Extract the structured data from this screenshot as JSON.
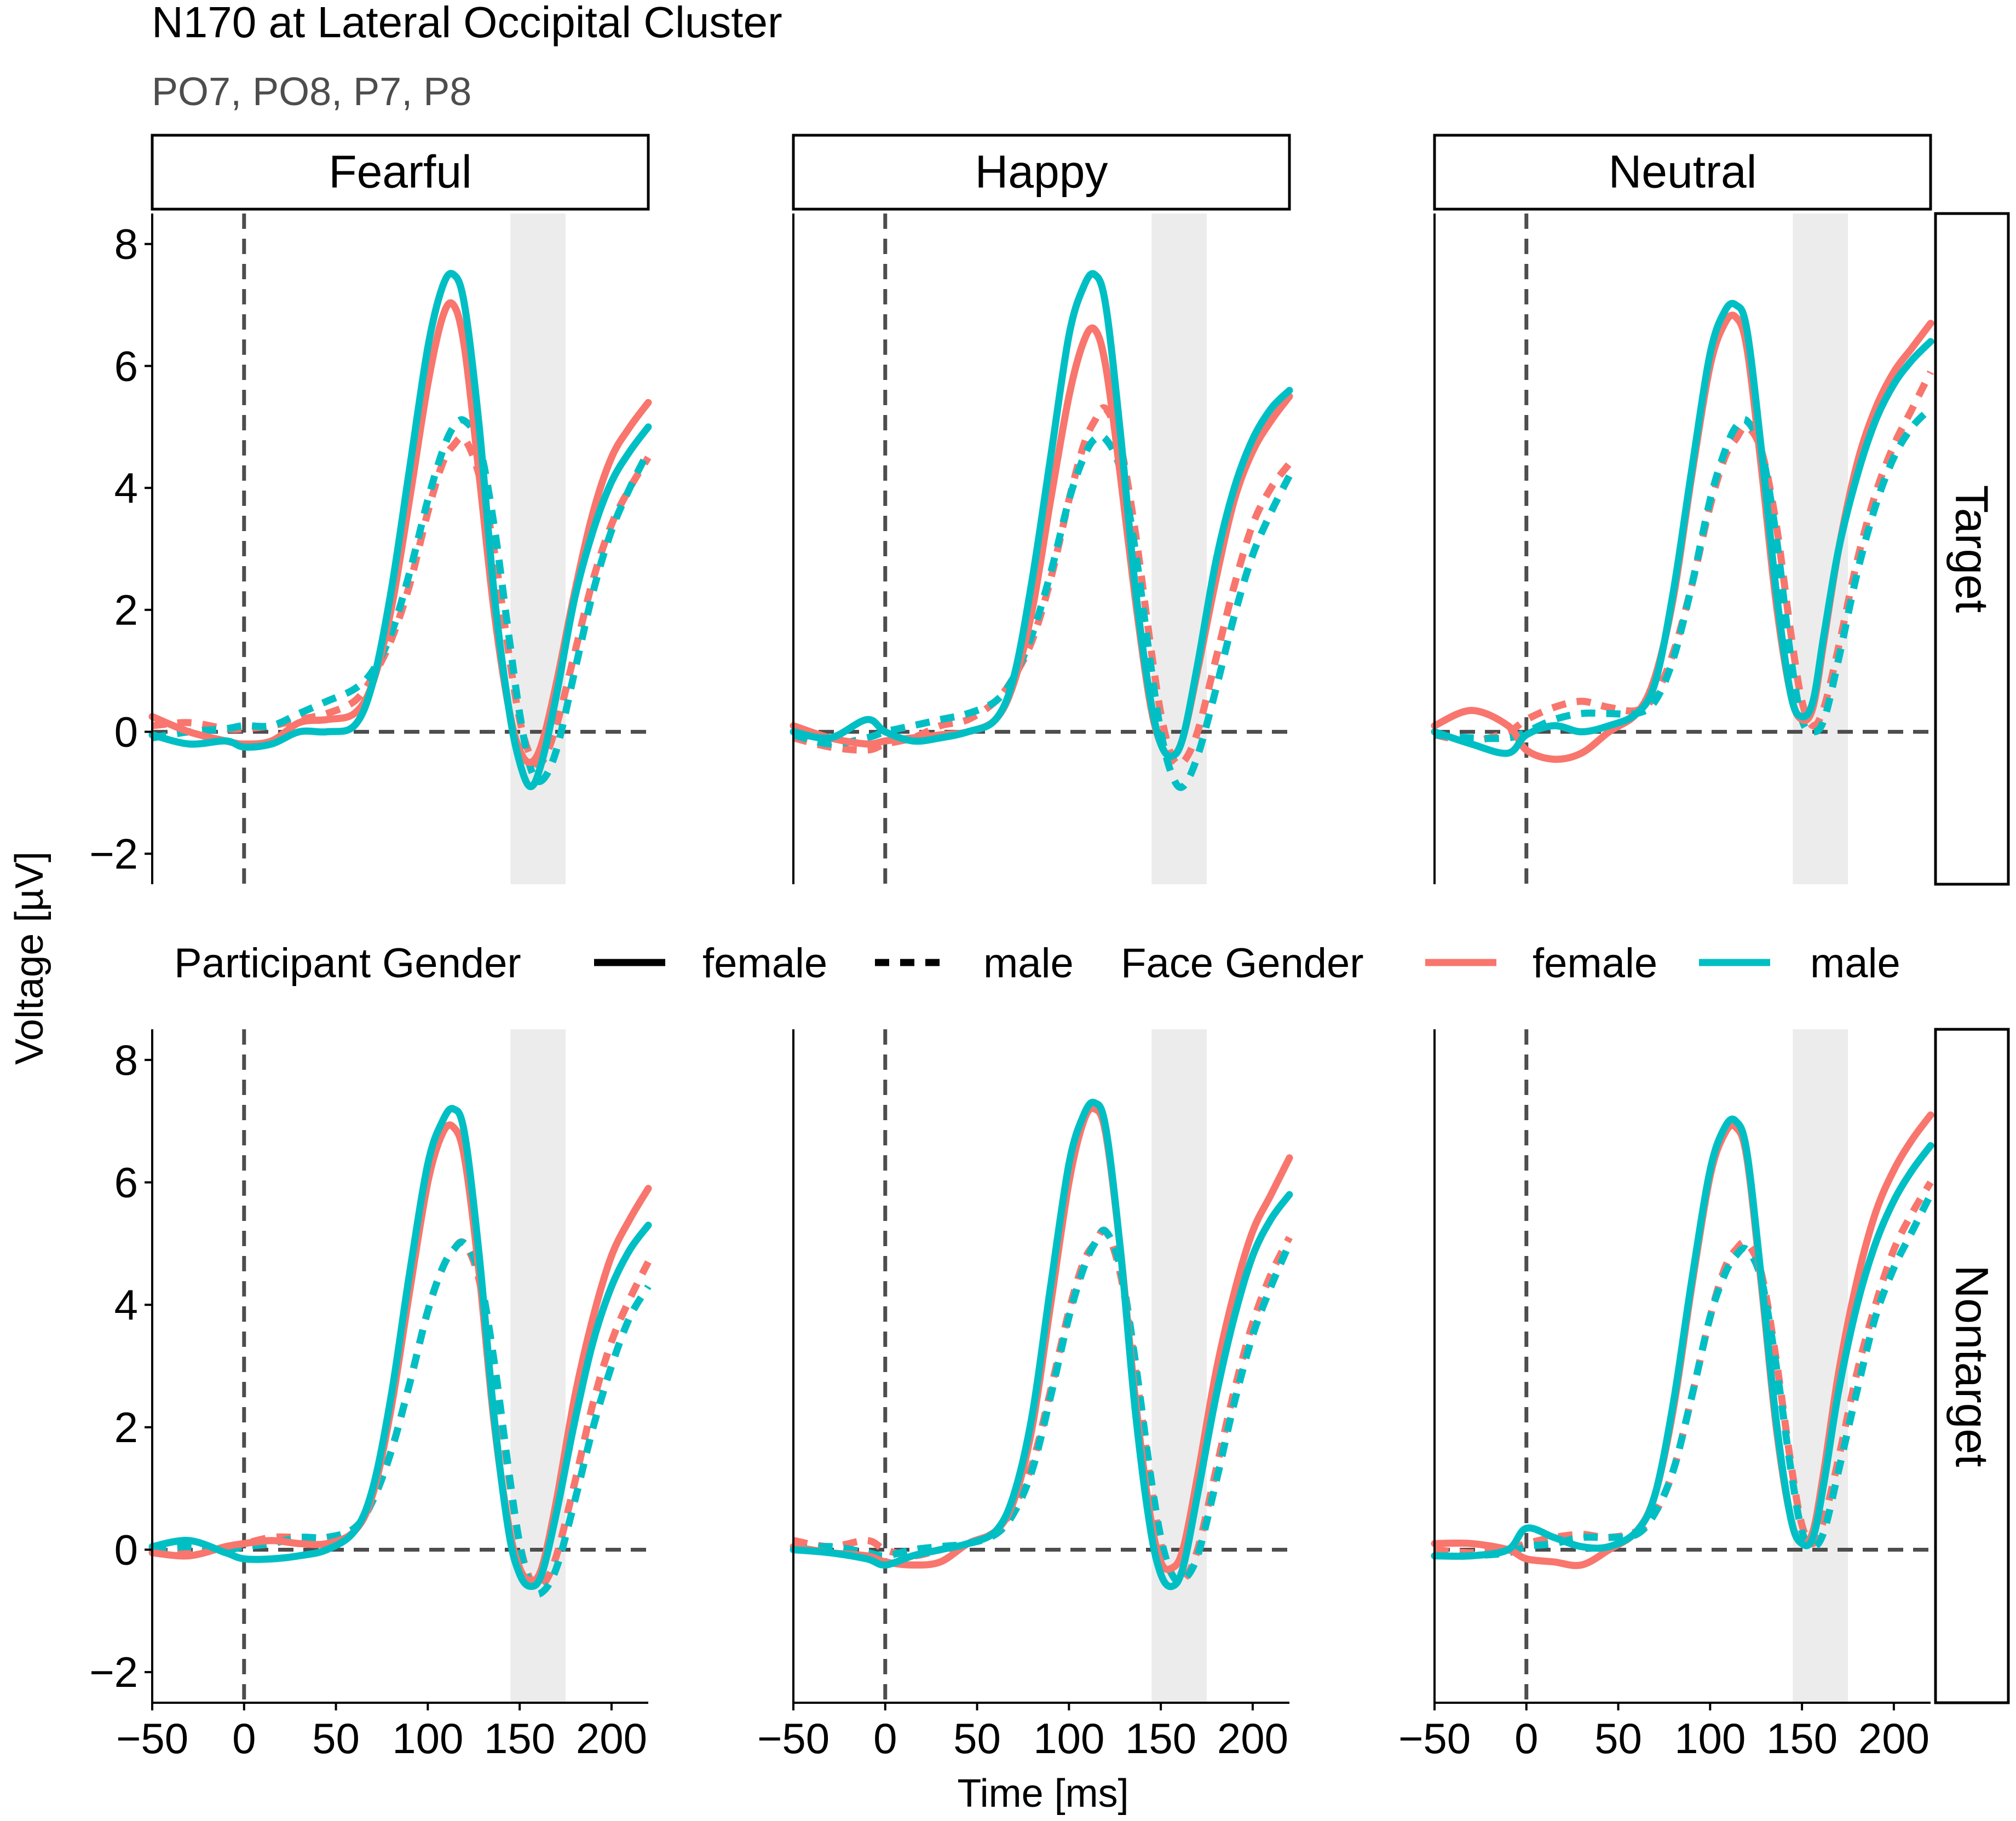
{
  "chart_data": {
    "type": "line",
    "title": "N170 at Lateral Occipital Cluster",
    "subtitle": "PO7, PO8, P7, P8",
    "xlabel": "Time [ms]",
    "ylabel": "Voltage [µV]",
    "xlim": [
      -50,
      220
    ],
    "ylim": [
      -2.5,
      8.5
    ],
    "x_ticks": [
      -50,
      0,
      50,
      100,
      150,
      200
    ],
    "x_tick_labels": [
      "−50",
      "0",
      "50",
      "100",
      "150",
      "200"
    ],
    "y_ticks": [
      -2,
      0,
      2,
      4,
      6,
      8
    ],
    "y_tick_labels": [
      "−2",
      "0",
      "2",
      "4",
      "6",
      "8"
    ],
    "reference_lines": {
      "x": 0,
      "y": 0
    },
    "highlight_window": [
      145,
      175
    ],
    "column_facets": [
      "Fearful",
      "Happy",
      "Neutral"
    ],
    "row_facets": [
      "Target",
      "Nontarget"
    ],
    "colors": {
      "female_face": "#F8766D",
      "male_face": "#00BFC4",
      "reference": "#4d4d4d",
      "highlight": "#ececec"
    },
    "legend": {
      "position": "top",
      "participant_title": "Participant Gender",
      "participant_entries": [
        {
          "label": "female",
          "dash": "solid"
        },
        {
          "label": "male",
          "dash": "dashed"
        }
      ],
      "face_title": "Face Gender",
      "face_entries": [
        {
          "label": "female",
          "color_key": "female_face"
        },
        {
          "label": "male",
          "color_key": "male_face"
        }
      ]
    },
    "x": [
      -50,
      -30,
      -10,
      0,
      15,
      30,
      45,
      60,
      70,
      80,
      90,
      100,
      108,
      114,
      120,
      128,
      136,
      144,
      150,
      156,
      162,
      170,
      180,
      190,
      200,
      210,
      220
    ],
    "panels": [
      {
        "row": "Target",
        "col": "Fearful",
        "series": [
          {
            "face": "female",
            "participant": "female",
            "values": [
              0.25,
              0.0,
              -0.15,
              -0.2,
              -0.15,
              0.15,
              0.2,
              0.3,
              0.8,
              2.0,
              3.8,
              5.7,
              6.8,
              7.0,
              6.3,
              4.2,
              2.0,
              0.4,
              -0.3,
              -0.5,
              -0.2,
              0.8,
              2.3,
              3.6,
              4.5,
              5.0,
              5.4
            ]
          },
          {
            "face": "male",
            "participant": "female",
            "values": [
              -0.05,
              -0.2,
              -0.15,
              -0.25,
              -0.2,
              0.0,
              0.0,
              0.1,
              0.8,
              2.3,
              4.3,
              6.3,
              7.3,
              7.5,
              7.0,
              5.0,
              2.3,
              0.4,
              -0.5,
              -0.9,
              -0.5,
              0.6,
              2.2,
              3.3,
              4.1,
              4.6,
              5.0
            ]
          },
          {
            "face": "female",
            "participant": "male",
            "values": [
              0.1,
              0.15,
              0.05,
              0.05,
              0.1,
              0.2,
              0.3,
              0.5,
              0.9,
              1.5,
              2.4,
              3.6,
              4.4,
              4.7,
              4.8,
              4.2,
              3.0,
              1.3,
              0.2,
              -0.4,
              -0.5,
              0.1,
              1.3,
              2.5,
              3.4,
              4.0,
              4.5
            ]
          },
          {
            "face": "male",
            "participant": "male",
            "values": [
              -0.1,
              0.0,
              0.05,
              0.1,
              0.1,
              0.3,
              0.5,
              0.7,
              1.0,
              1.6,
              2.6,
              3.8,
              4.6,
              5.0,
              5.1,
              4.7,
              3.4,
              1.6,
              0.3,
              -0.6,
              -0.8,
              -0.3,
              1.0,
              2.3,
              3.3,
              4.0,
              4.6
            ]
          }
        ]
      },
      {
        "row": "Target",
        "col": "Happy",
        "series": [
          {
            "face": "female",
            "participant": "female",
            "values": [
              0.1,
              -0.1,
              -0.2,
              -0.15,
              -0.1,
              -0.05,
              0.0,
              0.2,
              0.8,
              2.0,
              3.8,
              5.5,
              6.4,
              6.6,
              6.0,
              4.2,
              2.2,
              0.5,
              -0.2,
              -0.4,
              -0.1,
              1.0,
              2.5,
              3.8,
              4.6,
              5.1,
              5.5
            ]
          },
          {
            "face": "male",
            "participant": "female",
            "values": [
              0.0,
              -0.1,
              0.2,
              0.0,
              -0.15,
              -0.1,
              0.0,
              0.2,
              0.9,
              2.5,
              4.5,
              6.5,
              7.3,
              7.5,
              7.0,
              4.9,
              2.4,
              0.6,
              -0.2,
              -0.4,
              -0.1,
              1.1,
              2.8,
              4.0,
              4.8,
              5.3,
              5.6
            ]
          },
          {
            "face": "female",
            "participant": "male",
            "values": [
              -0.1,
              -0.25,
              -0.3,
              -0.2,
              -0.1,
              0.1,
              0.2,
              0.5,
              0.9,
              1.5,
              2.5,
              3.8,
              4.7,
              5.1,
              5.3,
              4.7,
              3.3,
              1.5,
              0.3,
              -0.4,
              -0.5,
              0.0,
              1.2,
              2.4,
              3.4,
              4.0,
              4.4
            ]
          },
          {
            "face": "male",
            "participant": "male",
            "values": [
              -0.05,
              -0.2,
              -0.1,
              0.0,
              0.1,
              0.2,
              0.3,
              0.5,
              0.9,
              1.6,
              2.6,
              3.8,
              4.5,
              4.8,
              4.8,
              4.3,
              3.0,
              1.2,
              0.0,
              -0.7,
              -0.9,
              -0.4,
              0.7,
              1.9,
              2.9,
              3.6,
              4.2
            ]
          }
        ]
      },
      {
        "row": "Target",
        "col": "Neutral",
        "series": [
          {
            "face": "female",
            "participant": "female",
            "values": [
              0.1,
              0.35,
              0.1,
              -0.3,
              -0.45,
              -0.35,
              0.0,
              0.3,
              0.9,
              2.2,
              4.2,
              6.0,
              6.7,
              6.8,
              6.3,
              4.3,
              2.1,
              0.6,
              0.2,
              0.4,
              1.5,
              3.0,
              4.4,
              5.3,
              5.9,
              6.3,
              6.7
            ]
          },
          {
            "face": "male",
            "participant": "female",
            "values": [
              0.0,
              -0.2,
              -0.35,
              -0.05,
              0.1,
              0.0,
              0.1,
              0.3,
              0.8,
              2.3,
              4.3,
              6.2,
              6.9,
              7.0,
              6.6,
              4.6,
              2.3,
              0.6,
              0.25,
              0.5,
              1.6,
              3.0,
              4.2,
              5.1,
              5.7,
              6.1,
              6.4
            ]
          },
          {
            "face": "female",
            "participant": "male",
            "values": [
              -0.05,
              -0.15,
              0.0,
              0.2,
              0.4,
              0.5,
              0.4,
              0.35,
              0.6,
              1.3,
              2.4,
              3.7,
              4.5,
              4.8,
              5.0,
              4.6,
              3.4,
              1.6,
              0.5,
              0.1,
              0.4,
              1.4,
              2.8,
              3.9,
              4.7,
              5.3,
              5.9
            ]
          },
          {
            "face": "male",
            "participant": "male",
            "values": [
              -0.05,
              -0.1,
              -0.1,
              0.0,
              0.2,
              0.3,
              0.3,
              0.3,
              0.5,
              1.2,
              2.4,
              3.8,
              4.6,
              5.0,
              5.1,
              4.6,
              3.2,
              1.2,
              0.2,
              0.0,
              0.2,
              1.2,
              2.6,
              3.7,
              4.5,
              5.0,
              5.3
            ]
          }
        ]
      },
      {
        "row": "Nontarget",
        "col": "Fearful",
        "series": [
          {
            "face": "female",
            "participant": "female",
            "values": [
              -0.05,
              -0.1,
              0.05,
              0.1,
              0.15,
              0.1,
              0.1,
              0.3,
              0.9,
              2.3,
              4.2,
              6.0,
              6.8,
              6.9,
              6.4,
              4.5,
              2.1,
              0.4,
              -0.3,
              -0.5,
              -0.3,
              0.8,
              2.5,
              3.8,
              4.8,
              5.4,
              5.9
            ]
          },
          {
            "face": "male",
            "participant": "female",
            "values": [
              0.05,
              0.15,
              -0.05,
              -0.15,
              -0.15,
              -0.1,
              0.0,
              0.3,
              1.0,
              2.5,
              4.5,
              6.3,
              7.0,
              7.2,
              6.8,
              4.8,
              2.2,
              0.3,
              -0.4,
              -0.6,
              -0.4,
              0.6,
              2.1,
              3.4,
              4.3,
              4.9,
              5.3
            ]
          },
          {
            "face": "female",
            "participant": "male",
            "values": [
              0.0,
              -0.05,
              0.05,
              0.1,
              0.2,
              0.2,
              0.2,
              0.35,
              0.8,
              1.6,
              2.7,
              3.9,
              4.6,
              4.9,
              5.0,
              4.4,
              3.0,
              1.2,
              0.1,
              -0.5,
              -0.6,
              -0.1,
              1.1,
              2.4,
              3.4,
              4.1,
              4.7
            ]
          },
          {
            "face": "male",
            "participant": "male",
            "values": [
              0.0,
              0.05,
              0.0,
              0.05,
              0.1,
              0.2,
              0.2,
              0.35,
              0.8,
              1.6,
              2.7,
              3.9,
              4.6,
              4.9,
              5.0,
              4.5,
              3.1,
              1.3,
              0.1,
              -0.6,
              -0.7,
              -0.3,
              0.8,
              2.0,
              3.0,
              3.8,
              4.3
            ]
          }
        ]
      },
      {
        "row": "Nontarget",
        "col": "Happy",
        "series": [
          {
            "face": "female",
            "participant": "female",
            "values": [
              0.05,
              -0.05,
              -0.1,
              -0.2,
              -0.25,
              -0.2,
              0.1,
              0.3,
              0.8,
              2.0,
              4.0,
              6.0,
              7.0,
              7.2,
              6.8,
              4.9,
              2.5,
              0.6,
              -0.2,
              -0.3,
              0.0,
              1.2,
              2.9,
              4.2,
              5.2,
              5.8,
              6.4
            ]
          },
          {
            "face": "male",
            "participant": "female",
            "values": [
              0.0,
              -0.05,
              -0.15,
              -0.25,
              -0.1,
              0.0,
              0.1,
              0.3,
              0.9,
              2.2,
              4.3,
              6.3,
              7.1,
              7.3,
              6.9,
              4.9,
              2.3,
              0.4,
              -0.4,
              -0.6,
              -0.3,
              0.9,
              2.5,
              3.8,
              4.8,
              5.4,
              5.8
            ]
          },
          {
            "face": "female",
            "participant": "male",
            "values": [
              0.15,
              0.05,
              0.15,
              0.0,
              -0.1,
              0.0,
              0.1,
              0.3,
              0.7,
              1.4,
              2.6,
              3.9,
              4.7,
              5.0,
              5.2,
              4.5,
              3.0,
              1.2,
              0.1,
              -0.4,
              -0.5,
              0.0,
              1.3,
              2.6,
              3.7,
              4.5,
              5.1
            ]
          },
          {
            "face": "male",
            "participant": "male",
            "values": [
              0.0,
              0.05,
              -0.05,
              -0.1,
              0.0,
              0.05,
              0.1,
              0.25,
              0.6,
              1.3,
              2.5,
              3.8,
              4.6,
              5.0,
              5.2,
              4.6,
              3.1,
              1.3,
              0.2,
              -0.4,
              -0.5,
              -0.1,
              1.1,
              2.4,
              3.5,
              4.3,
              5.0
            ]
          }
        ]
      },
      {
        "row": "Nontarget",
        "col": "Neutral",
        "series": [
          {
            "face": "female",
            "participant": "female",
            "values": [
              0.1,
              0.1,
              0.0,
              -0.15,
              -0.2,
              -0.25,
              0.0,
              0.3,
              0.9,
              2.3,
              4.3,
              6.1,
              6.8,
              6.9,
              6.4,
              4.3,
              2.0,
              0.5,
              0.1,
              0.3,
              1.3,
              2.9,
              4.4,
              5.5,
              6.2,
              6.7,
              7.1
            ]
          },
          {
            "face": "male",
            "participant": "female",
            "values": [
              -0.1,
              -0.1,
              0.0,
              0.35,
              0.2,
              0.05,
              0.05,
              0.3,
              0.9,
              2.4,
              4.4,
              6.2,
              6.9,
              7.0,
              6.5,
              4.4,
              2.1,
              0.5,
              0.1,
              0.2,
              1.1,
              2.6,
              4.0,
              5.0,
              5.7,
              6.2,
              6.6
            ]
          },
          {
            "face": "female",
            "participant": "male",
            "values": [
              0.0,
              -0.05,
              0.0,
              0.1,
              0.2,
              0.25,
              0.2,
              0.3,
              0.6,
              1.3,
              2.5,
              3.8,
              4.6,
              4.9,
              5.0,
              4.5,
              3.1,
              1.4,
              0.4,
              0.1,
              0.5,
              1.5,
              2.9,
              4.0,
              4.9,
              5.5,
              6.0
            ]
          },
          {
            "face": "male",
            "participant": "male",
            "values": [
              -0.1,
              -0.1,
              -0.05,
              0.05,
              0.1,
              0.2,
              0.2,
              0.25,
              0.6,
              1.3,
              2.5,
              3.8,
              4.5,
              4.8,
              4.9,
              4.4,
              3.0,
              1.3,
              0.3,
              0.05,
              0.3,
              1.3,
              2.6,
              3.8,
              4.6,
              5.2,
              5.8
            ]
          }
        ]
      }
    ]
  }
}
